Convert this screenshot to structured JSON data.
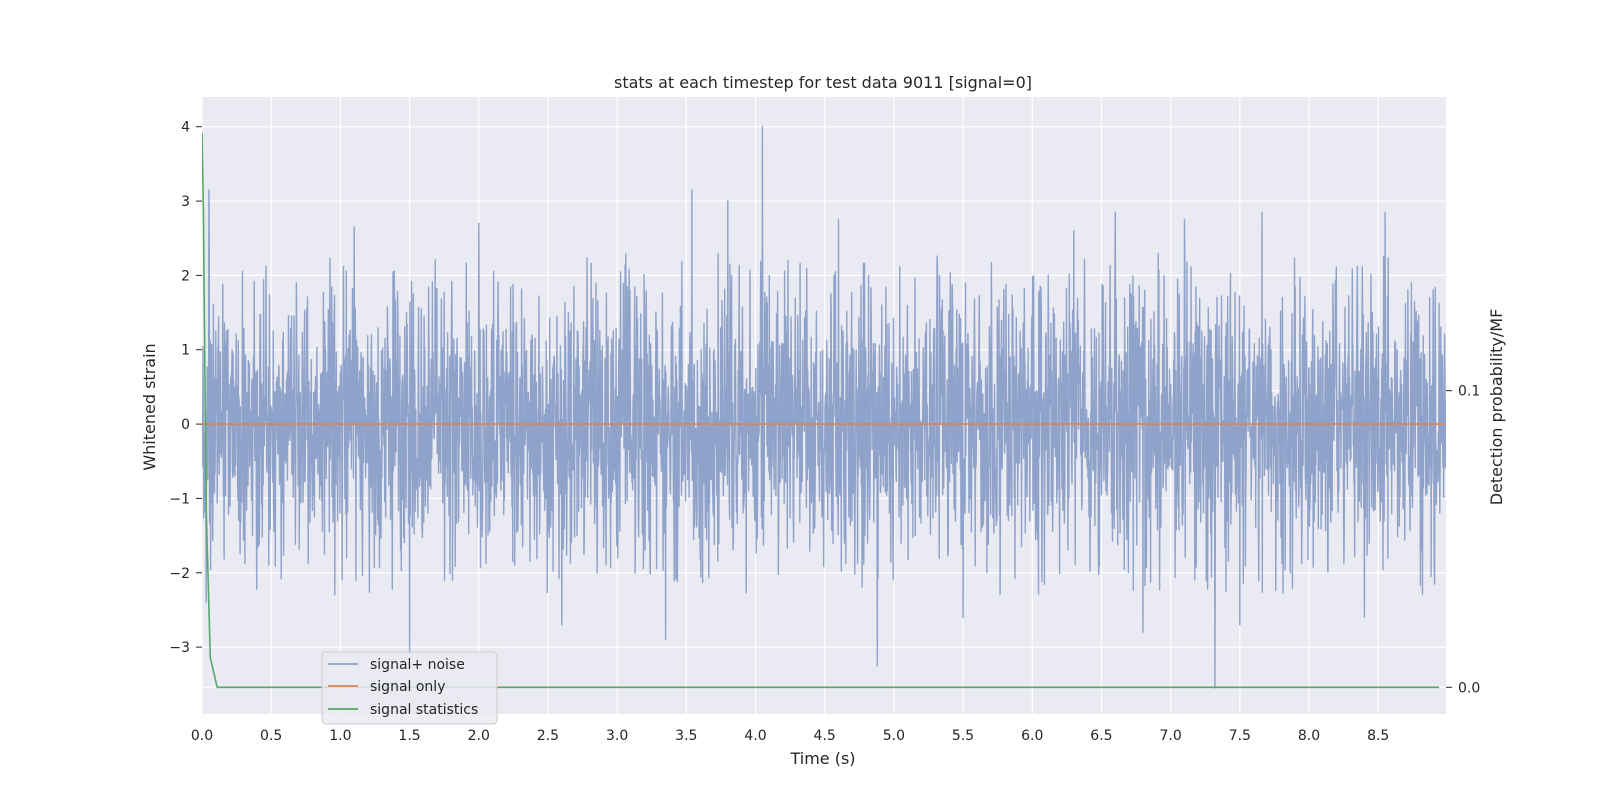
{
  "chart_data": {
    "type": "line",
    "title": "stats at each timestep for test data 9011 [signal=0]",
    "xlabel": "Time (s)",
    "ylabel": "Whitened strain",
    "y2label": "Detection probability/MF",
    "xlim": [
      0.0,
      8.99
    ],
    "ylim": [
      -3.9,
      4.4
    ],
    "y2lim": [
      -0.009,
      0.199
    ],
    "xticks": [
      0.0,
      0.5,
      1.0,
      1.5,
      2.0,
      2.5,
      3.0,
      3.5,
      4.0,
      4.5,
      5.0,
      5.5,
      6.0,
      6.5,
      7.0,
      7.5,
      8.0,
      8.5
    ],
    "xtick_labels": [
      "0.0",
      "0.5",
      "1.0",
      "1.5",
      "2.0",
      "2.5",
      "3.0",
      "3.5",
      "4.0",
      "4.5",
      "5.0",
      "5.5",
      "6.0",
      "6.5",
      "7.0",
      "7.5",
      "8.0",
      "8.5"
    ],
    "yticks": [
      -3,
      -2,
      -1,
      0,
      1,
      2,
      3,
      4
    ],
    "ytick_labels": [
      "−3",
      "−2",
      "−1",
      "0",
      "1",
      "2",
      "3",
      "4"
    ],
    "y2ticks": [
      0.0,
      0.1
    ],
    "y2tick_labels": [
      "0.0",
      "0.1"
    ],
    "grid": true,
    "legend_position": "lower-left",
    "series": [
      {
        "name": "signal+ noise",
        "axis": "left",
        "color": "#8fa2c9",
        "kind": "noise",
        "sample_rate_hz": 400,
        "std_approx": 0.95,
        "peaks": [
          {
            "x": 0.05,
            "y": 3.15
          },
          {
            "x": 1.1,
            "y": 2.65
          },
          {
            "x": 2.0,
            "y": 2.7
          },
          {
            "x": 3.54,
            "y": 3.15
          },
          {
            "x": 3.8,
            "y": 3.0
          },
          {
            "x": 4.05,
            "y": 4.0
          },
          {
            "x": 4.6,
            "y": 2.75
          },
          {
            "x": 6.3,
            "y": 2.6
          },
          {
            "x": 6.6,
            "y": 2.85
          },
          {
            "x": 7.1,
            "y": 2.75
          },
          {
            "x": 7.66,
            "y": 2.85
          },
          {
            "x": 8.55,
            "y": 2.85
          }
        ],
        "troughs": [
          {
            "x": 0.03,
            "y": -2.4
          },
          {
            "x": 1.5,
            "y": -3.1
          },
          {
            "x": 2.6,
            "y": -2.7
          },
          {
            "x": 3.35,
            "y": -2.9
          },
          {
            "x": 4.88,
            "y": -3.25
          },
          {
            "x": 5.5,
            "y": -2.6
          },
          {
            "x": 6.8,
            "y": -2.8
          },
          {
            "x": 7.32,
            "y": -3.55
          },
          {
            "x": 7.5,
            "y": -2.7
          },
          {
            "x": 8.4,
            "y": -2.6
          }
        ]
      },
      {
        "name": "signal only",
        "axis": "left",
        "color": "#dd8452",
        "x": [
          0.0,
          8.99
        ],
        "values": [
          0.0,
          0.0
        ]
      },
      {
        "name": "signal statistics",
        "axis": "right",
        "color": "#55a868",
        "x": [
          0.0,
          0.01,
          0.03,
          0.06,
          0.11,
          0.2,
          1.0,
          3.0,
          5.0,
          7.0,
          8.94
        ],
        "values": [
          0.187,
          0.16,
          0.06,
          0.01,
          0.0,
          0.0,
          0.0,
          0.0,
          0.0,
          0.0,
          0.0
        ]
      }
    ]
  }
}
